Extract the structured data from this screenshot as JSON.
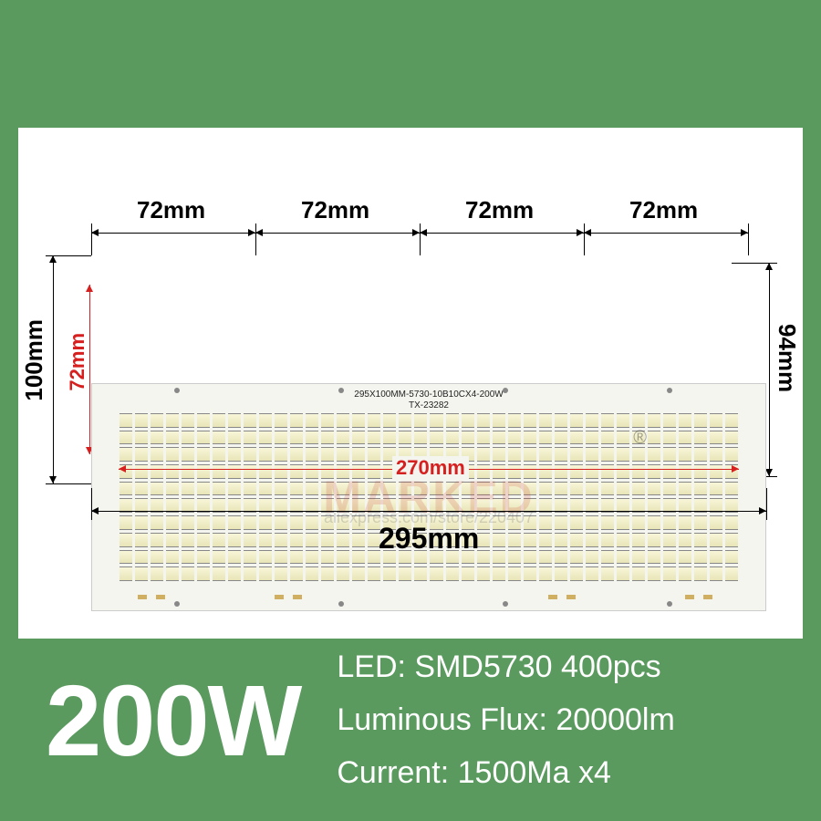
{
  "background_color": "#5a9a5f",
  "panel_color": "#ffffff",
  "pcb": {
    "color": "#f5f5f0",
    "text_line1": "295X100MM-5730-10B10CX4-200W",
    "text_line2": "TX-23282",
    "led_rows": 10,
    "led_cols": 40,
    "led_color": "#f0eec8"
  },
  "dimensions": {
    "top_segments": [
      "72mm",
      "72mm",
      "72mm",
      "72mm"
    ],
    "left_outer": "100mm",
    "left_inner": "72mm",
    "right": "94mm",
    "bottom_inner": "270mm",
    "bottom_outer": "295mm",
    "label_color_black": "#000000",
    "label_color_red": "#d62020",
    "label_fontsize": 26
  },
  "watermark": {
    "main": "MARKED",
    "sub": "aliexpress.com/store/220407",
    "reg": "®"
  },
  "specs": {
    "wattage": "200W",
    "led": "LED: SMD5730  400pcs",
    "flux": "Luminous Flux: 20000lm",
    "current": "Current: 1500Ma x4",
    "text_color": "#ffffff",
    "wattage_fontsize": 110,
    "spec_fontsize": 34
  }
}
